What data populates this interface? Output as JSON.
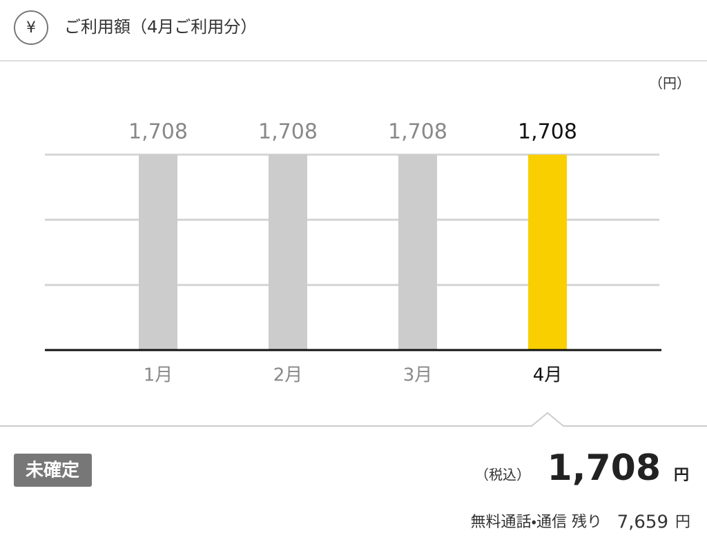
{
  "header": {
    "icon": "¥",
    "title": "ご利用額（4月ご利用分）"
  },
  "chart_data": {
    "type": "bar",
    "unit_label": "（円）",
    "categories": [
      "1月",
      "2月",
      "3月",
      "4月"
    ],
    "values": [
      1708,
      1708,
      1708,
      1708
    ],
    "value_labels": [
      "1,708",
      "1,708",
      "1,708",
      "1,708"
    ],
    "colors": [
      "#cccccc",
      "#cccccc",
      "#cccccc",
      "#f9cf00"
    ],
    "label_colors": [
      "#888888",
      "#888888",
      "#888888",
      "#111111"
    ],
    "ylim": [
      0,
      1708
    ],
    "yticks": [
      569,
      1139,
      1708
    ],
    "grid": true
  },
  "summary": {
    "status_badge": "未確定",
    "tax_label": "（税込）",
    "total": "1,708",
    "total_unit": "円",
    "remaining_label": "無料通話・通信  残り",
    "remaining_value": "7,659",
    "remaining_unit": "円"
  }
}
